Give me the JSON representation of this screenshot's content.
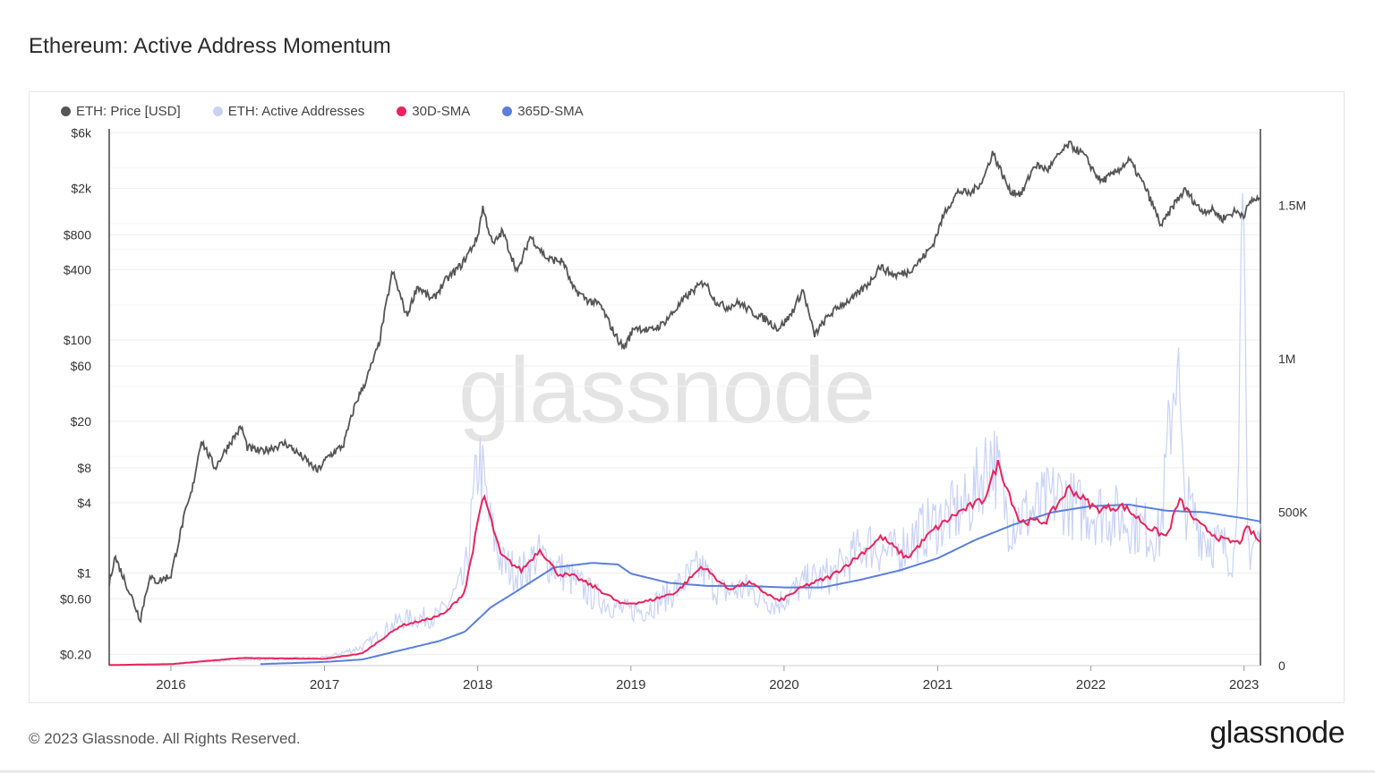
{
  "page": {
    "title": "Ethereum: Active Address Momentum",
    "footer": "© 2023 Glassnode. All Rights Reserved.",
    "brand": "glassnode",
    "watermark": "glassnode"
  },
  "colors": {
    "price": "#555555",
    "active": "#c9d2f6",
    "sma30": "#e8245c",
    "sma365": "#5a7fdc",
    "grid": "#efefef",
    "axis": "#444444"
  },
  "chart_data": {
    "type": "line",
    "legend": [
      {
        "key": "price",
        "label": "ETH: Price [USD]"
      },
      {
        "key": "active",
        "label": "ETH: Active Addresses"
      },
      {
        "key": "sma30",
        "label": "30D-SMA"
      },
      {
        "key": "sma365",
        "label": "365D-SMA"
      }
    ],
    "x_ticks": [
      "2016",
      "2017",
      "2018",
      "2019",
      "2020",
      "2021",
      "2022",
      "2023"
    ],
    "x_range": [
      "2015-08-07",
      "2023-02-09"
    ],
    "y_left": {
      "scale": "log",
      "range": [
        0.16,
        6500
      ],
      "ticks": [
        {
          "v": 6000,
          "label": "$6k"
        },
        {
          "v": 2000,
          "label": "$2k"
        },
        {
          "v": 800,
          "label": "$800"
        },
        {
          "v": 400,
          "label": "$400"
        },
        {
          "v": 100,
          "label": "$100"
        },
        {
          "v": 60,
          "label": "$60"
        },
        {
          "v": 20,
          "label": "$20"
        },
        {
          "v": 8,
          "label": "$8"
        },
        {
          "v": 4,
          "label": "$4"
        },
        {
          "v": 1,
          "label": "$1"
        },
        {
          "v": 0.6,
          "label": "$0.60"
        },
        {
          "v": 0.2,
          "label": "$0.20"
        }
      ]
    },
    "y_right": {
      "scale": "linear",
      "range": [
        0,
        1750000
      ],
      "ticks": [
        {
          "v": 0,
          "label": "0"
        },
        {
          "v": 500000,
          "label": "500K"
        },
        {
          "v": 1000000,
          "label": "1M"
        },
        {
          "v": 1500000,
          "label": "1.5M"
        }
      ]
    },
    "series": [
      {
        "name": "ETH: Price [USD]",
        "axis": "left",
        "points": [
          [
            "2015-08-07",
            0.8
          ],
          [
            "2015-08-20",
            1.4
          ],
          [
            "2015-10-01",
            0.6
          ],
          [
            "2015-10-20",
            0.4
          ],
          [
            "2015-11-10",
            0.9
          ],
          [
            "2015-12-01",
            0.85
          ],
          [
            "2016-01-01",
            0.95
          ],
          [
            "2016-02-01",
            3.0
          ],
          [
            "2016-02-20",
            5.0
          ],
          [
            "2016-03-13",
            14.0
          ],
          [
            "2016-04-15",
            8.0
          ],
          [
            "2016-05-20",
            13.0
          ],
          [
            "2016-06-17",
            18.0
          ],
          [
            "2016-07-01",
            12.0
          ],
          [
            "2016-08-01",
            11.0
          ],
          [
            "2016-09-01",
            12.0
          ],
          [
            "2016-10-01",
            13.0
          ],
          [
            "2016-11-15",
            9.5
          ],
          [
            "2016-12-15",
            7.5
          ],
          [
            "2017-01-10",
            10.0
          ],
          [
            "2017-02-15",
            12.5
          ],
          [
            "2017-03-15",
            28.0
          ],
          [
            "2017-04-10",
            45.0
          ],
          [
            "2017-05-10",
            90.0
          ],
          [
            "2017-06-12",
            390.0
          ],
          [
            "2017-07-16",
            160.0
          ],
          [
            "2017-08-10",
            290.0
          ],
          [
            "2017-09-15",
            220.0
          ],
          [
            "2017-10-15",
            320.0
          ],
          [
            "2017-11-25",
            450.0
          ],
          [
            "2017-12-31",
            750.0
          ],
          [
            "2018-01-13",
            1380.0
          ],
          [
            "2018-02-06",
            650.0
          ],
          [
            "2018-03-01",
            860.0
          ],
          [
            "2018-04-06",
            380.0
          ],
          [
            "2018-05-06",
            780.0
          ],
          [
            "2018-06-15",
            500.0
          ],
          [
            "2018-07-24",
            470.0
          ],
          [
            "2018-08-15",
            280.0
          ],
          [
            "2018-09-20",
            220.0
          ],
          [
            "2018-10-20",
            200.0
          ],
          [
            "2018-11-25",
            110.0
          ],
          [
            "2018-12-15",
            85.0
          ],
          [
            "2019-01-10",
            130.0
          ],
          [
            "2019-02-15",
            120.0
          ],
          [
            "2019-03-15",
            135.0
          ],
          [
            "2019-04-10",
            170.0
          ],
          [
            "2019-05-15",
            240.0
          ],
          [
            "2019-06-26",
            320.0
          ],
          [
            "2019-07-20",
            220.0
          ],
          [
            "2019-08-15",
            190.0
          ],
          [
            "2019-09-15",
            210.0
          ],
          [
            "2019-10-20",
            170.0
          ],
          [
            "2019-11-20",
            150.0
          ],
          [
            "2019-12-18",
            125.0
          ],
          [
            "2020-01-15",
            160.0
          ],
          [
            "2020-02-15",
            270.0
          ],
          [
            "2020-03-13",
            110.0
          ],
          [
            "2020-04-15",
            160.0
          ],
          [
            "2020-05-15",
            200.0
          ],
          [
            "2020-06-15",
            230.0
          ],
          [
            "2020-07-25",
            320.0
          ],
          [
            "2020-08-15",
            430.0
          ],
          [
            "2020-09-20",
            360.0
          ],
          [
            "2020-10-20",
            380.0
          ],
          [
            "2020-11-20",
            480.0
          ],
          [
            "2020-12-20",
            650.0
          ],
          [
            "2021-01-20",
            1300.0
          ],
          [
            "2021-02-20",
            1900.0
          ],
          [
            "2021-03-20",
            1800.0
          ],
          [
            "2021-04-20",
            2400.0
          ],
          [
            "2021-05-12",
            4100.0
          ],
          [
            "2021-06-22",
            1900.0
          ],
          [
            "2021-07-20",
            1800.0
          ],
          [
            "2021-08-20",
            3200.0
          ],
          [
            "2021-09-20",
            2900.0
          ],
          [
            "2021-10-20",
            4000.0
          ],
          [
            "2021-11-10",
            4800.0
          ],
          [
            "2021-12-15",
            3900.0
          ],
          [
            "2022-01-24",
            2300.0
          ],
          [
            "2022-02-20",
            2600.0
          ],
          [
            "2022-04-03",
            3500.0
          ],
          [
            "2022-05-12",
            2000.0
          ],
          [
            "2022-06-18",
            950.0
          ],
          [
            "2022-07-20",
            1500.0
          ],
          [
            "2022-08-14",
            1950.0
          ],
          [
            "2022-09-20",
            1300.0
          ],
          [
            "2022-10-20",
            1300.0
          ],
          [
            "2022-11-10",
            1100.0
          ],
          [
            "2022-12-10",
            1270.0
          ],
          [
            "2023-01-01",
            1200.0
          ],
          [
            "2023-01-20",
            1600.0
          ],
          [
            "2023-02-09",
            1620.0
          ]
        ]
      },
      {
        "name": "ETH: Active Addresses",
        "axis": "right",
        "points": [
          [
            "2015-08-07",
            2000
          ],
          [
            "2016-01-01",
            4000
          ],
          [
            "2016-06-01",
            20000
          ],
          [
            "2017-01-01",
            25000
          ],
          [
            "2017-04-01",
            60000
          ],
          [
            "2017-07-01",
            150000
          ],
          [
            "2017-10-01",
            160000
          ],
          [
            "2017-12-01",
            280000
          ],
          [
            "2018-01-04",
            680000
          ],
          [
            "2018-02-01",
            450000
          ],
          [
            "2018-03-01",
            330000
          ],
          [
            "2018-04-15",
            300000
          ],
          [
            "2018-05-20",
            360000
          ],
          [
            "2018-07-01",
            330000
          ],
          [
            "2018-08-15",
            280000
          ],
          [
            "2018-10-01",
            230000
          ],
          [
            "2018-12-10",
            180000
          ],
          [
            "2019-02-01",
            180000
          ],
          [
            "2019-04-01",
            230000
          ],
          [
            "2019-06-15",
            320000
          ],
          [
            "2019-08-01",
            240000
          ],
          [
            "2019-10-01",
            250000
          ],
          [
            "2019-12-15",
            200000
          ],
          [
            "2020-02-20",
            270000
          ],
          [
            "2020-05-01",
            300000
          ],
          [
            "2020-07-15",
            400000
          ],
          [
            "2020-09-15",
            360000
          ],
          [
            "2020-11-15",
            430000
          ],
          [
            "2021-01-15",
            480000
          ],
          [
            "2021-03-15",
            520000
          ],
          [
            "2021-05-10",
            700000
          ],
          [
            "2021-06-20",
            470000
          ],
          [
            "2021-08-15",
            500000
          ],
          [
            "2021-10-15",
            560000
          ],
          [
            "2021-12-01",
            510000
          ],
          [
            "2022-02-01",
            500000
          ],
          [
            "2022-04-01",
            470000
          ],
          [
            "2022-06-15",
            420000
          ],
          [
            "2022-07-25",
            1040000
          ],
          [
            "2022-08-10",
            540000
          ],
          [
            "2022-10-01",
            420000
          ],
          [
            "2022-12-10",
            360000
          ],
          [
            "2022-12-30",
            1400000
          ],
          [
            "2023-01-10",
            380000
          ],
          [
            "2023-02-09",
            420000
          ]
        ]
      },
      {
        "name": "30D-SMA",
        "axis": "right",
        "points": [
          [
            "2015-08-07",
            2000
          ],
          [
            "2016-01-01",
            5000
          ],
          [
            "2016-06-15",
            25000
          ],
          [
            "2017-01-01",
            22000
          ],
          [
            "2017-04-01",
            40000
          ],
          [
            "2017-07-01",
            130000
          ],
          [
            "2017-09-01",
            150000
          ],
          [
            "2017-10-15",
            170000
          ],
          [
            "2017-12-01",
            240000
          ],
          [
            "2018-01-15",
            560000
          ],
          [
            "2018-02-25",
            360000
          ],
          [
            "2018-04-15",
            310000
          ],
          [
            "2018-05-30",
            380000
          ],
          [
            "2018-07-10",
            300000
          ],
          [
            "2018-08-20",
            290000
          ],
          [
            "2018-10-15",
            250000
          ],
          [
            "2018-12-10",
            200000
          ],
          [
            "2019-02-10",
            210000
          ],
          [
            "2019-04-20",
            240000
          ],
          [
            "2019-06-20",
            325000
          ],
          [
            "2019-08-20",
            250000
          ],
          [
            "2019-10-10",
            270000
          ],
          [
            "2019-12-20",
            210000
          ],
          [
            "2020-02-20",
            260000
          ],
          [
            "2020-04-20",
            290000
          ],
          [
            "2020-06-20",
            350000
          ],
          [
            "2020-08-20",
            420000
          ],
          [
            "2020-10-20",
            350000
          ],
          [
            "2020-12-20",
            440000
          ],
          [
            "2021-02-20",
            500000
          ],
          [
            "2021-04-20",
            540000
          ],
          [
            "2021-05-25",
            660000
          ],
          [
            "2021-07-15",
            470000
          ],
          [
            "2021-09-15",
            470000
          ],
          [
            "2021-11-10",
            580000
          ],
          [
            "2022-01-15",
            510000
          ],
          [
            "2022-03-20",
            520000
          ],
          [
            "2022-05-20",
            450000
          ],
          [
            "2022-07-01",
            420000
          ],
          [
            "2022-07-30",
            540000
          ],
          [
            "2022-09-15",
            460000
          ],
          [
            "2022-11-10",
            410000
          ],
          [
            "2022-12-20",
            400000
          ],
          [
            "2023-01-10",
            450000
          ],
          [
            "2023-02-09",
            400000
          ]
        ]
      },
      {
        "name": "365D-SMA",
        "axis": "right",
        "points": [
          [
            "2016-08-01",
            5000
          ],
          [
            "2017-01-01",
            12000
          ],
          [
            "2017-04-01",
            20000
          ],
          [
            "2017-07-01",
            50000
          ],
          [
            "2017-10-01",
            80000
          ],
          [
            "2017-12-01",
            110000
          ],
          [
            "2018-02-01",
            190000
          ],
          [
            "2018-04-01",
            240000
          ],
          [
            "2018-07-01",
            320000
          ],
          [
            "2018-10-01",
            335000
          ],
          [
            "2018-12-01",
            330000
          ],
          [
            "2019-01-01",
            300000
          ],
          [
            "2019-04-01",
            270000
          ],
          [
            "2019-07-01",
            260000
          ],
          [
            "2019-10-01",
            260000
          ],
          [
            "2020-01-01",
            255000
          ],
          [
            "2020-04-01",
            255000
          ],
          [
            "2020-07-01",
            280000
          ],
          [
            "2020-10-01",
            310000
          ],
          [
            "2021-01-01",
            350000
          ],
          [
            "2021-04-01",
            410000
          ],
          [
            "2021-07-01",
            460000
          ],
          [
            "2021-10-01",
            500000
          ],
          [
            "2022-01-01",
            520000
          ],
          [
            "2022-04-01",
            525000
          ],
          [
            "2022-07-01",
            505000
          ],
          [
            "2022-10-01",
            500000
          ],
          [
            "2023-01-01",
            480000
          ],
          [
            "2023-02-09",
            470000
          ]
        ]
      }
    ]
  }
}
